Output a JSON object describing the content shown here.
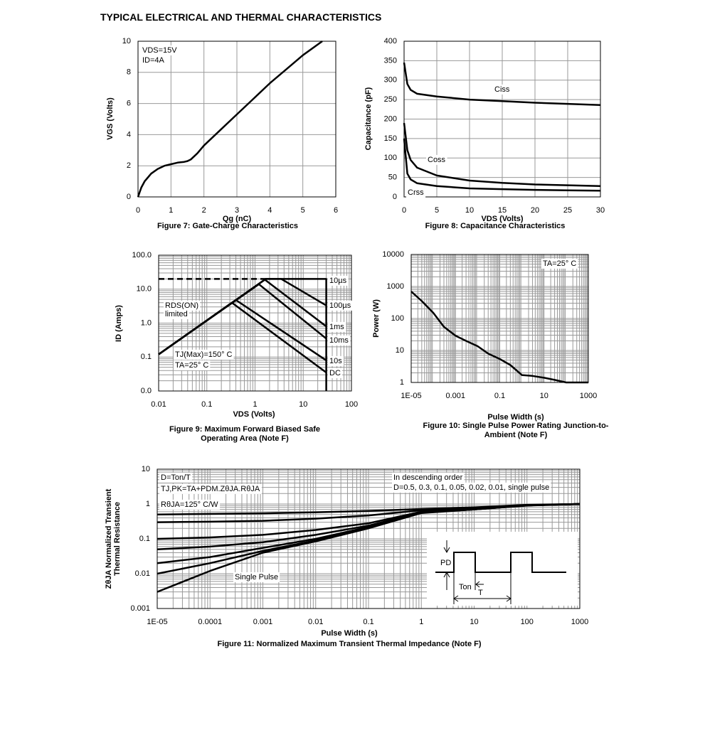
{
  "header": {
    "title": "TYPICAL ELECTRICAL AND THERMAL CHARACTERISTICS"
  },
  "chart_data": [
    {
      "type": "line",
      "title": "Figure 7: Gate-Charge Characteristics",
      "xlabel": "Qg (nC)",
      "ylabel": "VGS (Volts)",
      "xlim": [
        0,
        6
      ],
      "xticks": [
        0,
        1,
        2,
        3,
        4,
        5,
        6
      ],
      "ylim": [
        0,
        10
      ],
      "yticks": [
        0,
        2,
        4,
        6,
        8,
        10
      ],
      "grid": true,
      "annotations": [
        "VDS=15V",
        "ID=4A"
      ],
      "series": [
        {
          "color": "#000000",
          "x": [
            0,
            0.1,
            0.2,
            0.4,
            0.6,
            0.8,
            1.0,
            1.2,
            1.4,
            1.5,
            1.6,
            1.8,
            2,
            2.5,
            3,
            3.5,
            4,
            4.5,
            5,
            5.59
          ],
          "values": [
            0,
            0.6,
            1.0,
            1.5,
            1.8,
            2.0,
            2.1,
            2.2,
            2.25,
            2.3,
            2.4,
            2.8,
            3.3,
            4.3,
            5.3,
            6.3,
            7.3,
            8.2,
            9.1,
            10
          ]
        }
      ]
    },
    {
      "type": "line",
      "title": "Figure 8: Capacitance Characteristics",
      "xlabel": "VDS (Volts)",
      "ylabel": "Capacitance (pF)",
      "xlim": [
        0,
        30
      ],
      "xticks": [
        0,
        5,
        10,
        15,
        20,
        25,
        30
      ],
      "ylim": [
        0,
        400
      ],
      "yticks": [
        0,
        50,
        100,
        150,
        200,
        250,
        300,
        350,
        400
      ],
      "grid": true,
      "x": [
        0,
        0.5,
        1,
        2,
        5,
        10,
        15,
        20,
        25,
        30
      ],
      "series": [
        {
          "name": "Ciss",
          "color": "#000000",
          "values": [
            345,
            290,
            275,
            265,
            258,
            250,
            246,
            242,
            239,
            236
          ]
        },
        {
          "name": "Coss",
          "color": "#000000",
          "values": [
            190,
            120,
            95,
            75,
            55,
            42,
            36,
            32,
            30,
            28
          ]
        },
        {
          "name": "Crss",
          "color": "#000000",
          "values": [
            150,
            60,
            45,
            35,
            28,
            22,
            20,
            18,
            17,
            16
          ]
        }
      ]
    },
    {
      "type": "line",
      "title": "Figure 9: Maximum Forward Biased Safe Operating Area (Note F)",
      "xlabel": "VDS (Volts)",
      "ylabel": "ID (Amps)",
      "xlog": true,
      "ylog": true,
      "grid": true,
      "minor_grid": true,
      "xlim": [
        0.01,
        100
      ],
      "xticks": [
        0.01,
        0.1,
        1,
        10,
        100
      ],
      "ylim": [
        0.01,
        100
      ],
      "yticks": [
        {
          "value": 0.01,
          "label": "0.0"
        },
        0.1,
        {
          "value": 1,
          "label": "1.0"
        },
        {
          "value": 10,
          "label": "10.0"
        },
        {
          "value": 100,
          "label": "100.0"
        }
      ],
      "annotations": [
        "RDS(ON)",
        "limited",
        "TJ(Max)=150° C",
        "TA=25° C"
      ],
      "series": [
        {
          "color": "#000000",
          "dash": true,
          "x": [
            0.01,
            1.67
          ],
          "values": [
            20,
            20
          ]
        },
        {
          "name": "10µs",
          "color": "#000000",
          "x": [
            0.01,
            1.67,
            30,
            30
          ],
          "values": [
            0.12,
            20,
            20,
            0.01
          ]
        },
        {
          "name": "100µs",
          "color": "#000000",
          "x": [
            0.01,
            1.67,
            3.5,
            30
          ],
          "values": [
            0.12,
            20,
            20,
            3.3
          ]
        },
        {
          "name": "1ms",
          "color": "#000000",
          "x": [
            0.01,
            1.6,
            30
          ],
          "values": [
            0.12,
            19,
            0.8
          ]
        },
        {
          "name": "10ms",
          "color": "#000000",
          "x": [
            0.01,
            1.2,
            30
          ],
          "values": [
            0.12,
            14,
            0.35
          ]
        },
        {
          "name": "10s",
          "color": "#000000",
          "x": [
            0.01,
            0.4,
            30
          ],
          "values": [
            0.12,
            4.8,
            0.08
          ]
        },
        {
          "name": "DC",
          "color": "#000000",
          "x": [
            0.01,
            0.33,
            30
          ],
          "values": [
            0.12,
            4,
            0.035
          ]
        }
      ]
    },
    {
      "type": "line",
      "title": "Figure 10: Single Pulse Power Rating Junction-to-Ambient (Note F)",
      "xlabel": "Pulse Width (s)",
      "ylabel": "Power (W)",
      "xlog": true,
      "ylog": true,
      "grid": true,
      "minor_grid": true,
      "xlim": [
        1e-05,
        1000
      ],
      "xticks": [
        {
          "value": 1e-05,
          "label": "1E-05"
        },
        0.001,
        0.1,
        10,
        1000
      ],
      "ylim": [
        1,
        10000
      ],
      "yticks": [
        1,
        10,
        100,
        1000,
        10000
      ],
      "annotations": [
        "TA=25° C"
      ],
      "x": [
        1e-05,
        3e-05,
        0.0001,
        0.0003,
        0.001,
        0.003,
        0.01,
        0.03,
        0.1,
        0.3,
        1,
        3,
        10,
        30,
        100,
        1000
      ],
      "series": [
        {
          "color": "#000000",
          "values": [
            700,
            350,
            150,
            55,
            29,
            20,
            13.6,
            8,
            5.4,
            3.5,
            1.7,
            1.6,
            1.4,
            1.2,
            1.0,
            1.0
          ]
        }
      ]
    },
    {
      "type": "line",
      "title": "Figure 11: Normalized Maximum Transient Thermal Impedance (Note F)",
      "xlabel": "Pulse Width (s)",
      "ylabel": [
        "ZθJA Normalized Transient",
        "Thermal Resistance"
      ],
      "xlog": true,
      "ylog": true,
      "grid": true,
      "minor_grid": true,
      "xlim": [
        1e-05,
        1000
      ],
      "xticks": [
        {
          "value": 1e-05,
          "label": "1E-05"
        },
        0.0001,
        0.001,
        0.01,
        0.1,
        1,
        10,
        100,
        1000
      ],
      "ylim": [
        0.001,
        10
      ],
      "yticks": [
        0.001,
        0.01,
        0.1,
        1,
        10
      ],
      "annotations": [
        "D=Ton/T",
        "TJ,PK=TA+PDM.ZθJA.RθJA",
        "RθJA=125° C/W",
        "In descending order",
        "D=0.5, 0.3, 0.1, 0.05, 0.02, 0.01, single pulse",
        "Single Pulse",
        "PD",
        "Ton",
        "T"
      ],
      "x": [
        1e-05,
        0.0001,
        0.001,
        0.01,
        0.1,
        1,
        10,
        100,
        1000
      ],
      "series": [
        {
          "color": "#000000",
          "values": [
            0.5,
            0.52,
            0.54,
            0.58,
            0.63,
            0.72,
            0.8,
            0.95,
            1
          ]
        },
        {
          "color": "#000000",
          "values": [
            0.3,
            0.31,
            0.33,
            0.38,
            0.47,
            0.66,
            0.75,
            0.93,
            1
          ]
        },
        {
          "color": "#000000",
          "values": [
            0.1,
            0.11,
            0.13,
            0.18,
            0.28,
            0.6,
            0.72,
            0.92,
            1
          ]
        },
        {
          "color": "#000000",
          "values": [
            0.05,
            0.06,
            0.08,
            0.13,
            0.24,
            0.58,
            0.71,
            0.91,
            1
          ]
        },
        {
          "color": "#000000",
          "values": [
            0.02,
            0.03,
            0.055,
            0.1,
            0.22,
            0.57,
            0.7,
            0.91,
            1
          ]
        },
        {
          "color": "#000000",
          "values": [
            0.01,
            0.02,
            0.045,
            0.09,
            0.21,
            0.56,
            0.7,
            0.91,
            1
          ]
        },
        {
          "color": "#000000",
          "values": [
            0.003,
            0.012,
            0.04,
            0.085,
            0.2,
            0.55,
            0.7,
            0.9,
            1
          ]
        }
      ]
    }
  ]
}
